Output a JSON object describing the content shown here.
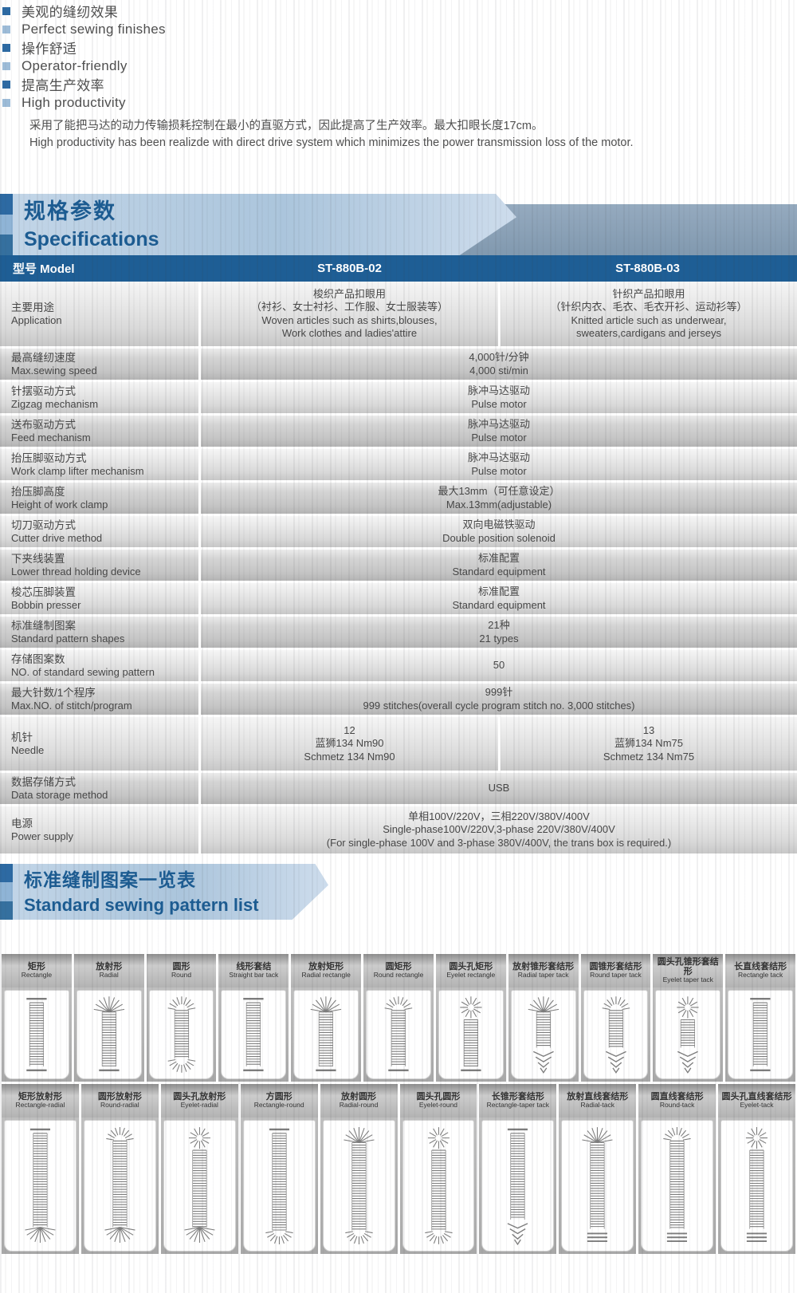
{
  "features": {
    "items": [
      {
        "zh": "美观的缝纫效果",
        "en": "Perfect sewing finishes"
      },
      {
        "zh": "操作舒适",
        "en": "Operator-friendly"
      },
      {
        "zh": "提高生产效率",
        "en": "High productivity"
      }
    ],
    "description_zh": "采用了能把马达的动力传输损耗控制在最小的直驱方式，因此提高了生产效率。最大扣眼长度17cm。",
    "description_en": "High productivity has been realizde with direct drive system which minimizes the power transmission loss of the motor."
  },
  "specifications": {
    "title_zh": "规格参数",
    "title_en": "Specifications",
    "header": {
      "model_label": "型号 Model",
      "model_1": "ST-880B-02",
      "model_2": "ST-880B-03"
    },
    "rows": [
      {
        "label_zh": "主要用途",
        "label_en": "Application",
        "merged": false,
        "col1": [
          "梭织产品扣眼用",
          "（衬衫、女士衬衫、工作服、女士服装等）",
          "Woven articles such as shirts,blouses,",
          "Work clothes and ladies'attire"
        ],
        "col2": [
          "针织产品扣眼用",
          "（针织内衣、毛衣、毛衣开衫、运动衫等）",
          "Knitted article such as underwear,",
          "sweaters,cardigans and jerseys"
        ]
      },
      {
        "label_zh": "最高缝纫速度",
        "label_en": "Max.sewing speed",
        "merged": true,
        "value": [
          "4,000针/分钟",
          "4,000 sti/min"
        ]
      },
      {
        "label_zh": "针摆驱动方式",
        "label_en": "Zigzag mechanism",
        "merged": true,
        "value": [
          "脉冲马达驱动",
          "Pulse motor"
        ]
      },
      {
        "label_zh": "送布驱动方式",
        "label_en": "Feed mechanism",
        "merged": true,
        "value": [
          "脉冲马达驱动",
          "Pulse motor"
        ]
      },
      {
        "label_zh": "抬压脚驱动方式",
        "label_en": "Work clamp lifter mechanism",
        "merged": true,
        "value": [
          "脉冲马达驱动",
          "Pulse motor"
        ]
      },
      {
        "label_zh": "抬压脚高度",
        "label_en": "Height of work clamp",
        "merged": true,
        "value": [
          "最大13mm（可任意设定）",
          "Max.13mm(adjustable)"
        ]
      },
      {
        "label_zh": "切刀驱动方式",
        "label_en": "Cutter drive method",
        "merged": true,
        "value": [
          "双向电磁铁驱动",
          "Double position solenoid"
        ]
      },
      {
        "label_zh": "下夹线装置",
        "label_en": "Lower thread holding device",
        "merged": true,
        "value": [
          "标准配置",
          "Standard equipment"
        ]
      },
      {
        "label_zh": "梭芯压脚装置",
        "label_en": "Bobbin presser",
        "merged": true,
        "value": [
          "标准配置",
          "Standard equipment"
        ]
      },
      {
        "label_zh": "标准缝制图案",
        "label_en": "Standard pattern shapes",
        "merged": true,
        "value": [
          "21种",
          "21 types"
        ]
      },
      {
        "label_zh": "存储图案数",
        "label_en": "NO. of standard sewing pattern",
        "merged": true,
        "value": [
          "50"
        ]
      },
      {
        "label_zh": "最大针数/1个程序",
        "label_en": "Max.NO. of stitch/program",
        "merged": true,
        "value": [
          "999针",
          "999 stitches(overall cycle program stitch no. 3,000 stitches)"
        ]
      },
      {
        "label_zh": "机针",
        "label_en": "Needle",
        "merged": false,
        "col1": [
          "12",
          "蓝狮134 Nm90",
          "Schmetz 134 Nm90"
        ],
        "col2": [
          "13",
          "蓝狮134 Nm75",
          "Schmetz 134 Nm75"
        ]
      },
      {
        "label_zh": "数据存储方式",
        "label_en": "Data storage method",
        "merged": true,
        "value": [
          "USB"
        ]
      },
      {
        "label_zh": "电源",
        "label_en": "Power supply",
        "merged": true,
        "value": [
          "单相100V/220V，三相220V/380V/400V",
          "Single-phase100V/220V,3-phase 220V/380V/400V",
          "(For single-phase 100V and 3-phase 380V/400V, the trans box is required.)"
        ]
      }
    ]
  },
  "pattern_list": {
    "title_zh": "标准缝制图案一览表",
    "title_en": "Standard sewing pattern list",
    "row1": [
      {
        "zh": "矩形",
        "en": "Rectangle",
        "top": "flat",
        "bottom": "flat"
      },
      {
        "zh": "放射形",
        "en": "Radial",
        "top": "radial",
        "bottom": "flat"
      },
      {
        "zh": "圆形",
        "en": "Round",
        "top": "round",
        "bottom": "round"
      },
      {
        "zh": "线形套结",
        "en": "Straight bar tack",
        "top": "flat",
        "bottom": "flat"
      },
      {
        "zh": "放射矩形",
        "en": "Radial rectangle",
        "top": "radial",
        "bottom": "flat"
      },
      {
        "zh": "圆矩形",
        "en": "Round rectangle",
        "top": "round",
        "bottom": "flat"
      },
      {
        "zh": "圆头孔矩形",
        "en": "Eyelet rectangle",
        "top": "eyelet",
        "bottom": "flat"
      },
      {
        "zh": "放射锥形套结形",
        "en": "Radial taper tack",
        "top": "radial",
        "bottom": "taper"
      },
      {
        "zh": "圆锥形套结形",
        "en": "Round taper tack",
        "top": "round",
        "bottom": "taper"
      },
      {
        "zh": "圆头孔锥形套结形",
        "en": "Eyelet taper tack",
        "top": "eyelet",
        "bottom": "taper"
      },
      {
        "zh": "长直线套结形",
        "en": "Rectangle tack",
        "top": "flat",
        "bottom": "flat"
      }
    ],
    "row2": [
      {
        "zh": "矩形放射形",
        "en": "Rectangle-radial",
        "top": "flat",
        "bottom": "radial"
      },
      {
        "zh": "圆形放射形",
        "en": "Round-radial",
        "top": "round",
        "bottom": "radial"
      },
      {
        "zh": "圆头孔放射形",
        "en": "Eyelet-radial",
        "top": "eyelet",
        "bottom": "radial"
      },
      {
        "zh": "方圆形",
        "en": "Rectangle-round",
        "top": "flat",
        "bottom": "round"
      },
      {
        "zh": "放射圆形",
        "en": "Radial-round",
        "top": "radial",
        "bottom": "round"
      },
      {
        "zh": "圆头孔圆形",
        "en": "Eyelet-round",
        "top": "eyelet",
        "bottom": "round"
      },
      {
        "zh": "长锥形套结形",
        "en": "Rectangle-taper tack",
        "top": "flat",
        "bottom": "taper"
      },
      {
        "zh": "放射直线套结形",
        "en": "Radial-tack",
        "top": "radial",
        "bottom": "bar"
      },
      {
        "zh": "圆直线套结形",
        "en": "Round-tack",
        "top": "round",
        "bottom": "bar"
      },
      {
        "zh": "圆头孔直线套结形",
        "en": "Eyelet-tack",
        "top": "eyelet",
        "bottom": "bar"
      }
    ]
  },
  "colors": {
    "accent_blue": "#1e5e95",
    "banner_blue": "#b9cde1",
    "band_gray_blue": "#8ba1b7",
    "title_blue": "#1c5c92"
  }
}
